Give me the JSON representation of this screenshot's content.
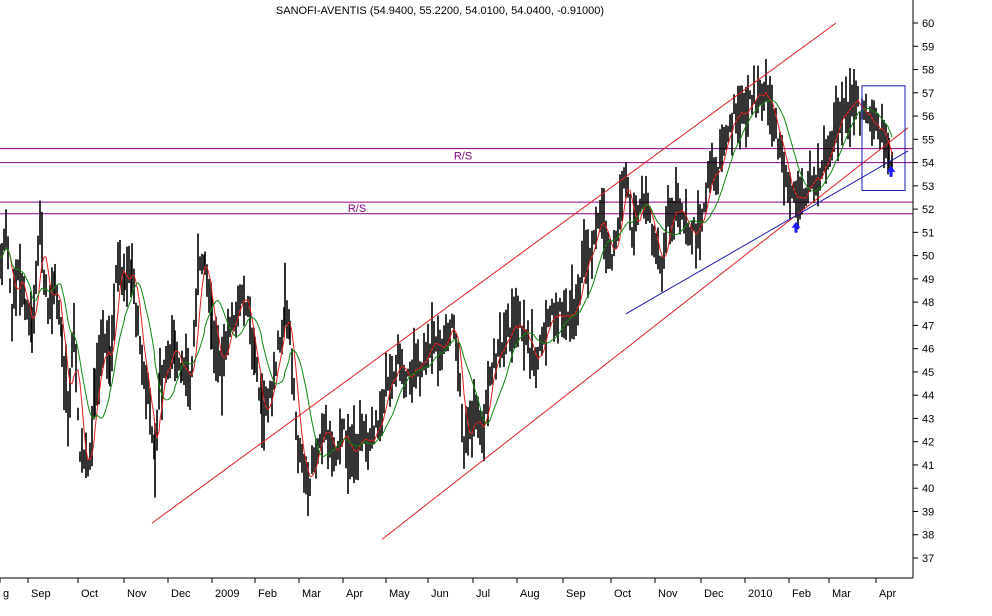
{
  "chart_data": {
    "type": "ohlc",
    "title": "SANOFI-AVENTIS (54.9400, 55.2200, 54.0100, 54.0400, -0.91000)",
    "ylim": [
      36,
      61
    ],
    "y_ticks": [
      37,
      38,
      39,
      40,
      41,
      42,
      43,
      44,
      45,
      46,
      47,
      48,
      49,
      50,
      51,
      52,
      53,
      54,
      55,
      56,
      57,
      58,
      59,
      60
    ],
    "x_labels": [
      "g",
      "Sep",
      "Oct",
      "Nov",
      "Dec",
      "2009",
      "Feb",
      "Mar",
      "Apr",
      "May",
      "Jun",
      "Jul",
      "Aug",
      "Sep",
      "Oct",
      "Nov",
      "Dec",
      "2010",
      "Feb",
      "Mar",
      "Apr"
    ],
    "grid": false,
    "price_anchors": [
      [
        0,
        49.5
      ],
      [
        6,
        51.0
      ],
      [
        12,
        47.5
      ],
      [
        18,
        49.5
      ],
      [
        25,
        48.0
      ],
      [
        32,
        47.0
      ],
      [
        40,
        51.2
      ],
      [
        48,
        47.5
      ],
      [
        55,
        48.5
      ],
      [
        62,
        46.5
      ],
      [
        68,
        43.0
      ],
      [
        74,
        47.0
      ],
      [
        80,
        41.5
      ],
      [
        88,
        41.0
      ],
      [
        95,
        44.0
      ],
      [
        103,
        46.0
      ],
      [
        110,
        45.5
      ],
      [
        118,
        50.0
      ],
      [
        125,
        48.5
      ],
      [
        132,
        49.5
      ],
      [
        140,
        46.0
      ],
      [
        148,
        44.0
      ],
      [
        155,
        41.0
      ],
      [
        160,
        44.5
      ],
      [
        168,
        45.5
      ],
      [
        175,
        46.0
      ],
      [
        182,
        45.0
      ],
      [
        190,
        44.5
      ],
      [
        198,
        49.0
      ],
      [
        205,
        49.8
      ],
      [
        212,
        47.5
      ],
      [
        220,
        45.0
      ],
      [
        226,
        46.0
      ],
      [
        232,
        47.0
      ],
      [
        240,
        48.5
      ],
      [
        248,
        47.5
      ],
      [
        255,
        45.5
      ],
      [
        262,
        43.0
      ],
      [
        270,
        44.0
      ],
      [
        278,
        46.0
      ],
      [
        285,
        47.5
      ],
      [
        290,
        46.5
      ],
      [
        296,
        42.5
      ],
      [
        302,
        41.0
      ],
      [
        308,
        40.0
      ],
      [
        314,
        41.5
      ],
      [
        320,
        42.0
      ],
      [
        326,
        42.5
      ],
      [
        332,
        41.5
      ],
      [
        338,
        42.0
      ],
      [
        344,
        42.5
      ],
      [
        350,
        41.5
      ],
      [
        356,
        41.5
      ],
      [
        362,
        42.5
      ],
      [
        368,
        41.5
      ],
      [
        374,
        42.5
      ],
      [
        380,
        43.0
      ],
      [
        386,
        44.5
      ],
      [
        392,
        45.0
      ],
      [
        398,
        45.5
      ],
      [
        404,
        44.5
      ],
      [
        410,
        45.0
      ],
      [
        416,
        45.5
      ],
      [
        422,
        45.5
      ],
      [
        428,
        46.0
      ],
      [
        434,
        46.5
      ],
      [
        440,
        46.0
      ],
      [
        446,
        46.5
      ],
      [
        452,
        47.5
      ],
      [
        458,
        45.5
      ],
      [
        464,
        41.5
      ],
      [
        470,
        43.0
      ],
      [
        476,
        43.0
      ],
      [
        482,
        42.0
      ],
      [
        488,
        44.5
      ],
      [
        494,
        45.5
      ],
      [
        500,
        46.0
      ],
      [
        506,
        46.5
      ],
      [
        512,
        47.0
      ],
      [
        518,
        47.0
      ],
      [
        524,
        46.5
      ],
      [
        530,
        46.0
      ],
      [
        536,
        45.5
      ],
      [
        542,
        46.5
      ],
      [
        548,
        47.0
      ],
      [
        554,
        47.5
      ],
      [
        560,
        47.5
      ],
      [
        566,
        47.5
      ],
      [
        572,
        47.5
      ],
      [
        578,
        48.0
      ],
      [
        584,
        50.0
      ],
      [
        590,
        50.0
      ],
      [
        596,
        51.0
      ],
      [
        602,
        51.5
      ],
      [
        608,
        50.5
      ],
      [
        614,
        50.0
      ],
      [
        620,
        52.0
      ],
      [
        626,
        53.5
      ],
      [
        632,
        51.0
      ],
      [
        638,
        52.0
      ],
      [
        644,
        52.5
      ],
      [
        650,
        51.5
      ],
      [
        656,
        50.0
      ],
      [
        662,
        49.5
      ],
      [
        668,
        51.5
      ],
      [
        674,
        52.0
      ],
      [
        680,
        52.0
      ],
      [
        686,
        51.5
      ],
      [
        692,
        51.0
      ],
      [
        698,
        51.5
      ],
      [
        704,
        52.0
      ],
      [
        710,
        53.5
      ],
      [
        716,
        53.5
      ],
      [
        722,
        54.5
      ],
      [
        728,
        55.5
      ],
      [
        734,
        56.0
      ],
      [
        740,
        56.5
      ],
      [
        746,
        56.5
      ],
      [
        752,
        56.5
      ],
      [
        758,
        57.0
      ],
      [
        764,
        56.5
      ],
      [
        770,
        57.0
      ],
      [
        776,
        55.0
      ],
      [
        782,
        54.5
      ],
      [
        788,
        53.0
      ],
      [
        794,
        53.0
      ],
      [
        800,
        52.5
      ],
      [
        806,
        53.0
      ],
      [
        812,
        53.5
      ],
      [
        818,
        53.5
      ],
      [
        824,
        54.0
      ],
      [
        830,
        54.5
      ],
      [
        836,
        55.5
      ],
      [
        842,
        56.0
      ],
      [
        848,
        56.5
      ],
      [
        854,
        57.0
      ],
      [
        860,
        56.0
      ],
      [
        866,
        56.0
      ],
      [
        872,
        55.5
      ],
      [
        878,
        55.5
      ],
      [
        884,
        55.0
      ],
      [
        889,
        54.6
      ],
      [
        892,
        54.04
      ]
    ],
    "resistance_support": [
      {
        "label": "R/S",
        "upper": 54.6,
        "lower": 54.0,
        "label_x": 463
      },
      {
        "label": "R/S",
        "upper": 52.3,
        "lower": 51.8,
        "label_x": 357
      }
    ],
    "trend_lines": [
      {
        "color": "#e02020",
        "x": [
          152,
          836
        ],
        "y": [
          38.5,
          60.0
        ]
      },
      {
        "color": "#e02020",
        "x": [
          382,
          908
        ],
        "y": [
          37.8,
          55.5
        ]
      },
      {
        "color": "#1a1aaa",
        "x": [
          626,
          908
        ],
        "y": [
          47.5,
          54.5
        ]
      }
    ],
    "annotation_box": {
      "x": [
        862,
        905
      ],
      "y": [
        52.8,
        57.3
      ]
    },
    "up_arrows": [
      {
        "x": 796,
        "y": 51.2
      },
      {
        "x": 891,
        "y": 53.6
      }
    ],
    "colors": {
      "bars": "#000000",
      "ma_short": "#e02020",
      "ma_long": "#108810",
      "rs_lines": "#880088",
      "channel": "#e02020",
      "support": "#1a1aaa",
      "arrow": "#1a1aff"
    }
  }
}
